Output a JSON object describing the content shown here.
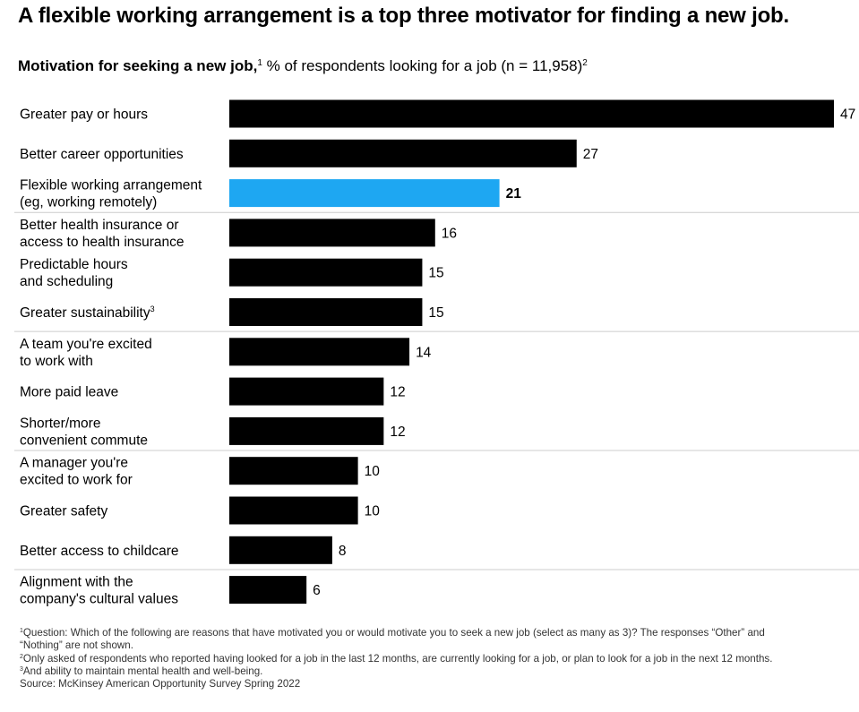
{
  "headline": "A flexible working arrangement is a top three motivator for finding a new job.",
  "chart_data": {
    "type": "bar",
    "orientation": "horizontal",
    "title": "Motivation for seeking a new job,",
    "title_footnote": "1",
    "subtitle": "% of respondents looking for a job (n = 11,958)",
    "subtitle_footnote": "2",
    "categories": [
      "Greater pay or hours",
      "Better career opportunities",
      "Flexible working arrangement\n(eg, working remotely)",
      "Better health insurance or\naccess to health insurance",
      "Predictable hours\nand scheduling",
      "Greater sustainability",
      "A team you're excited\nto work with",
      "More paid leave",
      "Shorter/more\nconvenient commute",
      "A manager you're\nexcited to work for",
      "Greater safety",
      "Better access to childcare",
      "Alignment with the\ncompany's cultural values"
    ],
    "category_footnotes": [
      "",
      "",
      "",
      "",
      "",
      "3",
      "",
      "",
      "",
      "",
      "",
      "",
      ""
    ],
    "values": [
      47,
      27,
      21,
      16,
      15,
      15,
      14,
      12,
      12,
      10,
      10,
      8,
      6
    ],
    "highlight_index": 2,
    "colors": {
      "bar": "#000000",
      "highlight": "#1ea7f2",
      "divider": "#cccccc"
    },
    "group_dividers_after": [
      2,
      5,
      8,
      11
    ],
    "xlim": [
      0,
      47
    ],
    "grid": false,
    "legend": "none"
  },
  "footnotes": [
    {
      "mark": "1",
      "text": "Question: Which of the following are reasons that have motivated you or would motivate you to seek a new job (select as many as 3)? The responses “Other” and\n“Nothing” are not shown."
    },
    {
      "mark": "2",
      "text": "Only asked of respondents who reported having looked for a job in the last 12 months, are currently looking for a job, or plan to look for a job in the next 12 months."
    },
    {
      "mark": "3",
      "text": "And ability to maintain mental health and well-being."
    }
  ],
  "source": "Source: McKinsey American Opportunity Survey Spring 2022"
}
